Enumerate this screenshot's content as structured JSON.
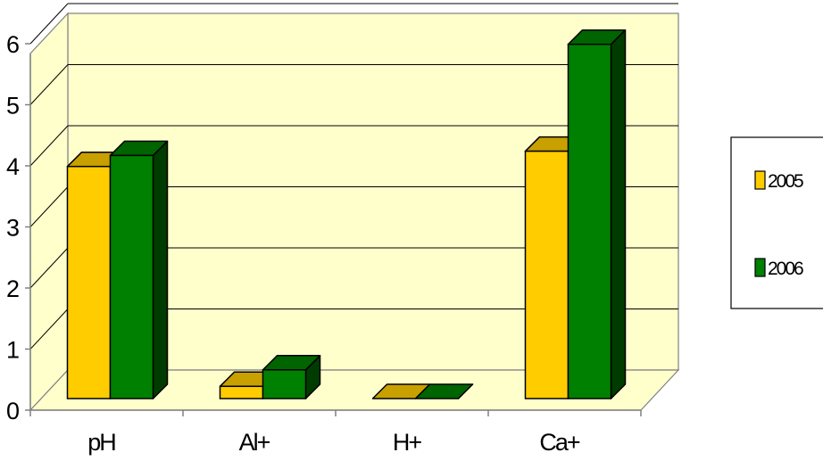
{
  "chart_data": {
    "type": "bar",
    "three_d": true,
    "categories": [
      "pH",
      "Al+",
      "H+",
      "Ca+"
    ],
    "series": [
      {
        "name": "2005",
        "values": [
          3.8,
          0.2,
          0.0,
          4.05
        ]
      },
      {
        "name": "2006",
        "values": [
          3.98,
          0.47,
          0.0,
          5.8
        ]
      }
    ],
    "y_ticks": [
      "0",
      "1",
      "2",
      "3",
      "4",
      "5",
      "6"
    ],
    "ylim": [
      0,
      6
    ],
    "grid": true,
    "legend_position": "right",
    "colors": {
      "2005": {
        "front": "#ffcc00",
        "top": "#c8a000",
        "side": "#8c6e00"
      },
      "2006": {
        "front": "#008000",
        "top": "#006400",
        "side": "#003c00"
      },
      "wall": "#ffffcc",
      "floor": "#ffffcc"
    }
  }
}
